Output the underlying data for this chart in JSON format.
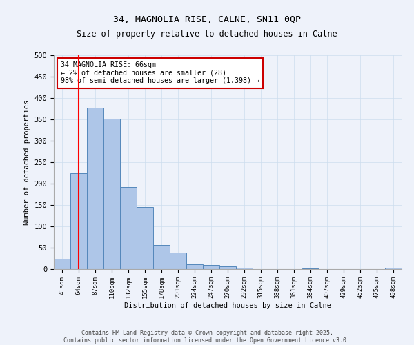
{
  "title_line1": "34, MAGNOLIA RISE, CALNE, SN11 0QP",
  "title_line2": "Size of property relative to detached houses in Calne",
  "xlabel": "Distribution of detached houses by size in Calne",
  "ylabel": "Number of detached properties",
  "categories": [
    "41sqm",
    "64sqm",
    "87sqm",
    "110sqm",
    "132sqm",
    "155sqm",
    "178sqm",
    "201sqm",
    "224sqm",
    "247sqm",
    "270sqm",
    "292sqm",
    "315sqm",
    "338sqm",
    "361sqm",
    "384sqm",
    "407sqm",
    "429sqm",
    "452sqm",
    "475sqm",
    "498sqm"
  ],
  "values": [
    25,
    225,
    378,
    352,
    192,
    145,
    56,
    39,
    11,
    9,
    7,
    4,
    0,
    0,
    0,
    2,
    0,
    0,
    0,
    0,
    3
  ],
  "bar_color": "#aec6e8",
  "bar_edge_color": "#5588bb",
  "grid_color": "#ccddee",
  "background_color": "#eef2fa",
  "annotation_text": "34 MAGNOLIA RISE: 66sqm\n← 2% of detached houses are smaller (28)\n98% of semi-detached houses are larger (1,398) →",
  "annotation_box_color": "#ffffff",
  "annotation_box_edge_color": "#cc0000",
  "footer_line1": "Contains HM Land Registry data © Crown copyright and database right 2025.",
  "footer_line2": "Contains public sector information licensed under the Open Government Licence v3.0.",
  "ylim": [
    0,
    500
  ],
  "yticks": [
    0,
    50,
    100,
    150,
    200,
    250,
    300,
    350,
    400,
    450,
    500
  ],
  "red_line_x": 1.5
}
